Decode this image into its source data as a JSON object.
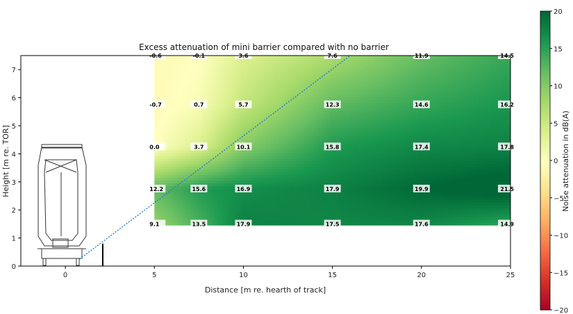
{
  "chart_data": {
    "type": "heatmap",
    "title": "Excess attenuation of mini barrier compared with no barrier",
    "xlabel": "Distance [m re. hearth of track]",
    "ylabel": "Height [m re. TOR]",
    "colorbar_label": "Noise attenuation in dB(A)",
    "xlim": [
      -2.5,
      25
    ],
    "ylim": [
      0,
      7.5
    ],
    "xticks": [
      "0",
      "5",
      "10",
      "15",
      "20",
      "25"
    ],
    "yticks": [
      "0",
      "1",
      "2",
      "3",
      "4",
      "5",
      "6",
      "7"
    ],
    "colorbar_ticks": [
      "−20",
      "−15",
      "−10",
      "−5",
      "0",
      "5",
      "10",
      "15",
      "20"
    ],
    "colorbar_range": [
      -20,
      20
    ],
    "colormap": "RdYlGn",
    "x": [
      5,
      7.5,
      10,
      15,
      20,
      25
    ],
    "y": [
      1.5,
      2.75,
      4.25,
      5.75,
      7.5
    ],
    "values": [
      [
        9.1,
        13.5,
        17.9,
        17.5,
        17.6,
        14.9
      ],
      [
        12.2,
        15.6,
        16.9,
        17.9,
        19.9,
        21.5
      ],
      [
        0.0,
        3.7,
        10.1,
        15.8,
        17.4,
        17.8
      ],
      [
        -0.7,
        0.7,
        5.7,
        12.3,
        14.6,
        16.2
      ],
      [
        -0.6,
        -0.1,
        3.6,
        7.6,
        11.9,
        14.5
      ]
    ],
    "labels": [
      [
        "9.1",
        "13.5",
        "17.9",
        "17.5",
        "17.6",
        "14.9"
      ],
      [
        "12.2",
        "15.6",
        "16.9",
        "17.9",
        "19.9",
        "21.5"
      ],
      [
        "0.0",
        "3.7",
        "10.1",
        "15.8",
        "17.4",
        "17.8"
      ],
      [
        "-0.7",
        "0.7",
        "5.7",
        "12.3",
        "14.6",
        "16.2"
      ],
      [
        "-0.6",
        "-0.1",
        "3.6",
        "7.6",
        "11.9",
        "14.5"
      ]
    ],
    "sight_line": {
      "x": [
        0.8,
        16
      ],
      "y": [
        0.25,
        7.5
      ],
      "color": "#2a7bd4"
    },
    "barrier": {
      "x": 2.1,
      "height": 0.8
    }
  }
}
